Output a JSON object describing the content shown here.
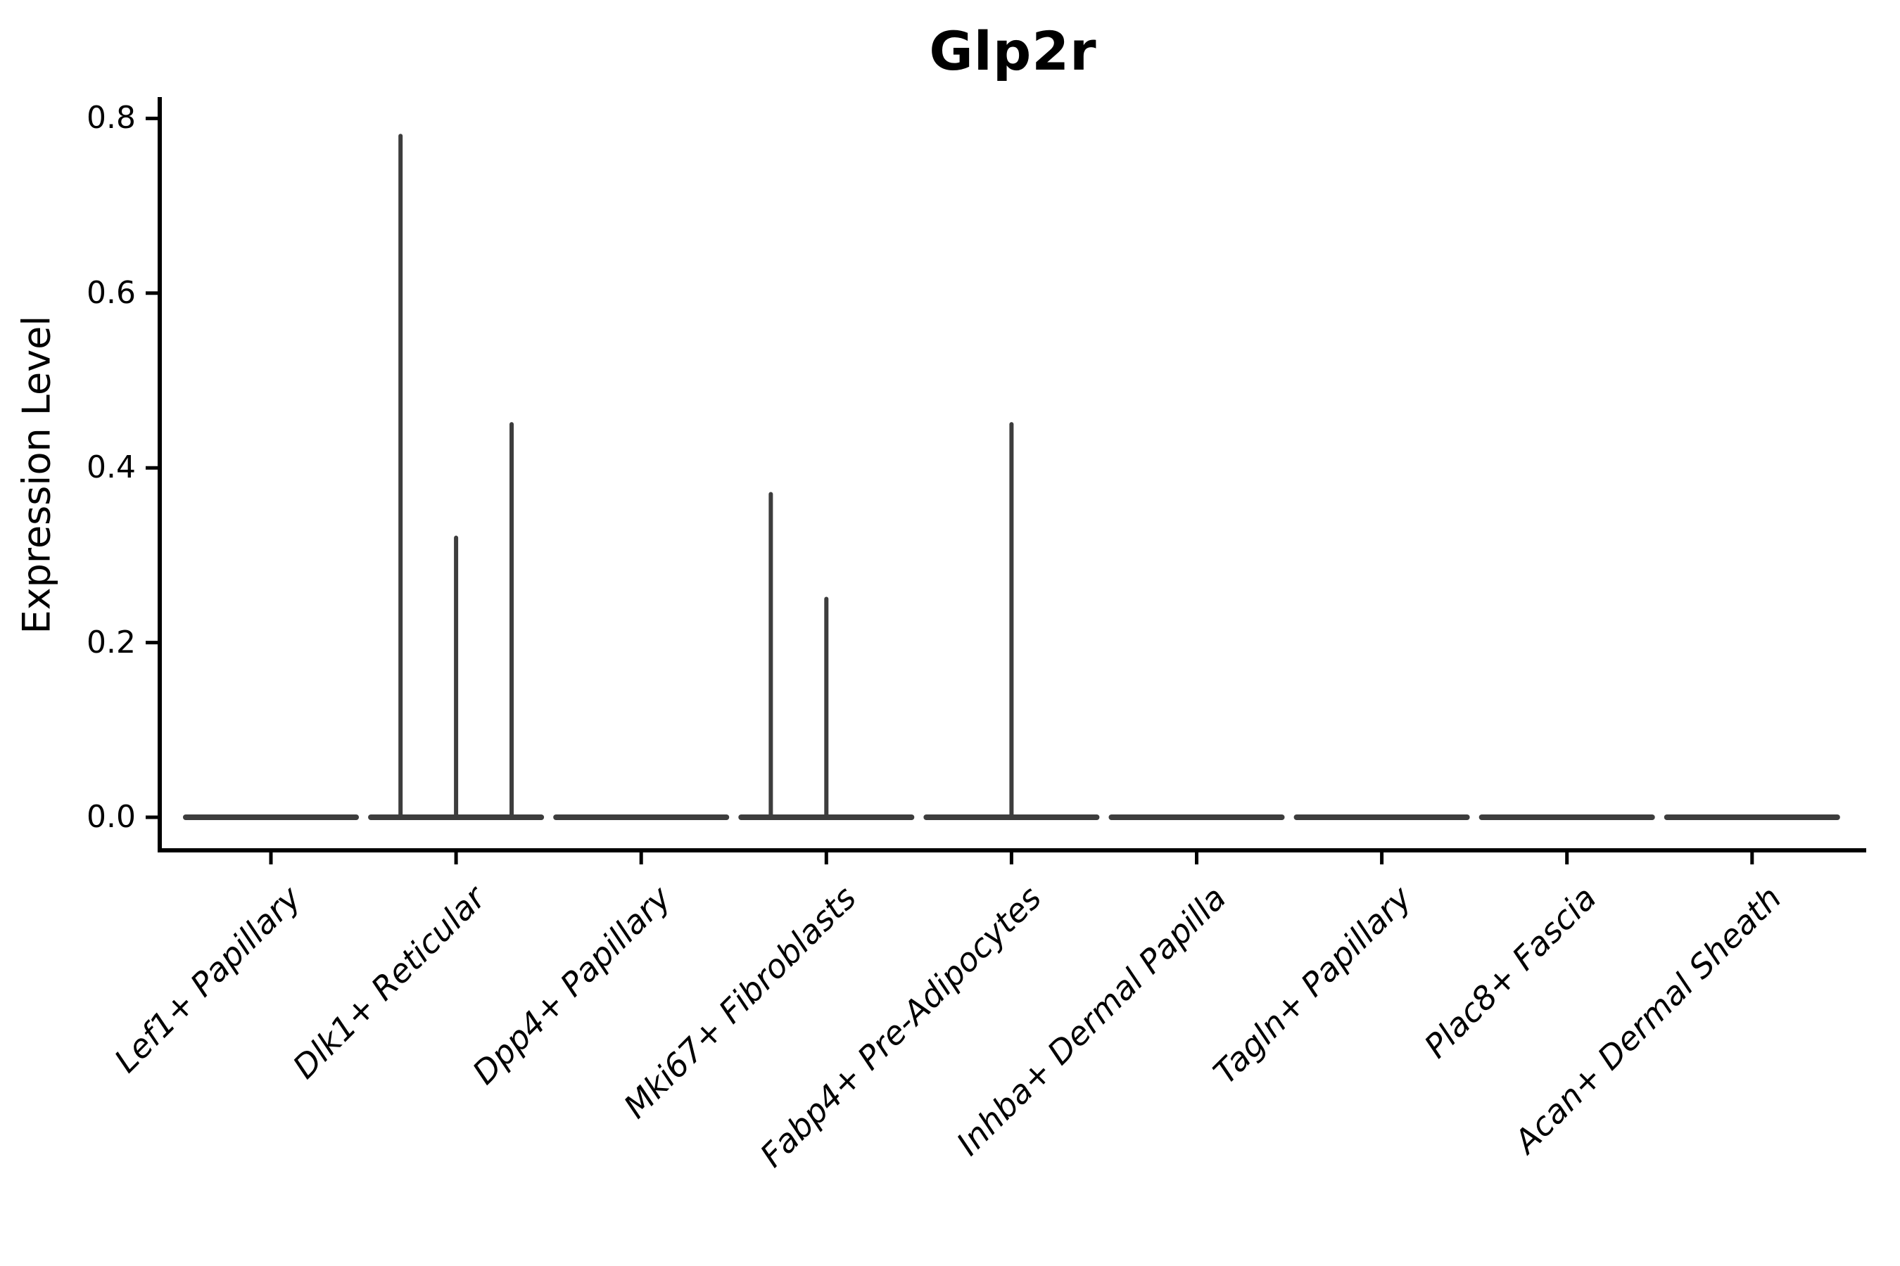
{
  "chart_data": {
    "type": "violin",
    "title": "Glp2r",
    "ylabel": "Expression Level",
    "xlabel": "",
    "y_ticks": [
      "0.0",
      "0.2",
      "0.4",
      "0.6",
      "0.8"
    ],
    "ylim": [
      -0.04,
      0.84
    ],
    "grid": false,
    "legend": null,
    "x_tick_rotation_deg": 45,
    "colors": {
      "violin": "#3d3d3d",
      "axis": "#000000",
      "text": "#000000"
    },
    "categories": [
      "Lef1+ Papillary",
      "Dlk1+ Reticular",
      "Dpp4+ Papillary",
      "Mki67+ Fibroblasts",
      "Fabp4+ Pre-Adipocytes",
      "Inhba+ Dermal Papilla",
      "Tagln+ Papillary",
      "Plac8+ Fascia",
      "Acan+ Dermal Sheath"
    ],
    "violins": [
      {
        "category": "Lef1+ Papillary",
        "body_value": 0.0,
        "spikes": []
      },
      {
        "category": "Dlk1+ Reticular",
        "body_value": 0.0,
        "spikes": [
          {
            "offset_frac": -0.3,
            "value": 0.78
          },
          {
            "offset_frac": 0.0,
            "value": 0.32
          },
          {
            "offset_frac": 0.3,
            "value": 0.45
          }
        ]
      },
      {
        "category": "Dpp4+ Papillary",
        "body_value": 0.0,
        "spikes": []
      },
      {
        "category": "Mki67+ Fibroblasts",
        "body_value": 0.0,
        "spikes": [
          {
            "offset_frac": -0.3,
            "value": 0.37
          },
          {
            "offset_frac": 0.0,
            "value": 0.25
          }
        ]
      },
      {
        "category": "Fabp4+ Pre-Adipocytes",
        "body_value": 0.0,
        "spikes": [
          {
            "offset_frac": 0.0,
            "value": 0.45
          }
        ]
      },
      {
        "category": "Inhba+ Dermal Papilla",
        "body_value": 0.0,
        "spikes": []
      },
      {
        "category": "Tagln+ Papillary",
        "body_value": 0.0,
        "spikes": []
      },
      {
        "category": "Plac8+ Fascia",
        "body_value": 0.0,
        "spikes": []
      },
      {
        "category": "Acan+ Dermal Sheath",
        "body_value": 0.0,
        "spikes": []
      }
    ],
    "violin_body_halfwidth_frac": 0.46
  }
}
